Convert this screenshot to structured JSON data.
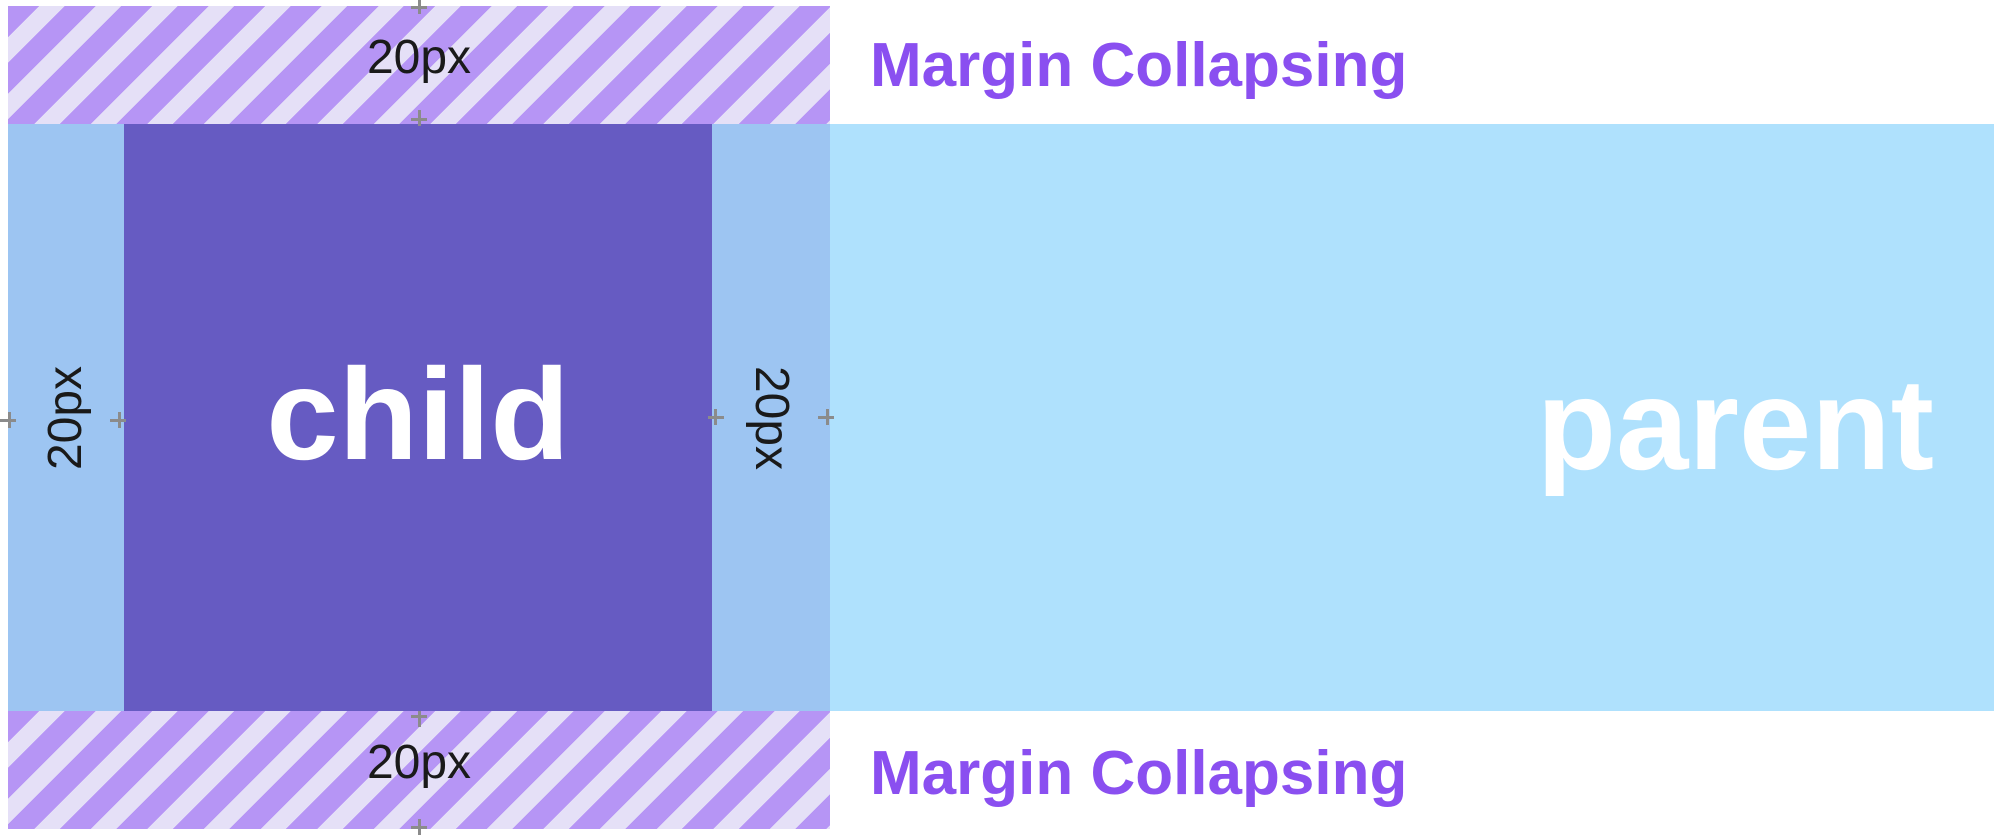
{
  "diagram": {
    "top_margin_label": "20px",
    "bottom_margin_label": "20px",
    "left_margin_label": "20px",
    "right_margin_label": "20px",
    "top_caption": "Margin Collapsing",
    "bottom_caption": "Margin Collapsing",
    "child_label": "child",
    "parent_label": "parent"
  },
  "colors": {
    "caption": "#8a4ff0",
    "child": "#665bc2",
    "parent": "#afe1fd",
    "side_margin": "#9dc5f2",
    "stripe_dark": "#b695f5",
    "stripe_light": "#e5e0f7"
  }
}
